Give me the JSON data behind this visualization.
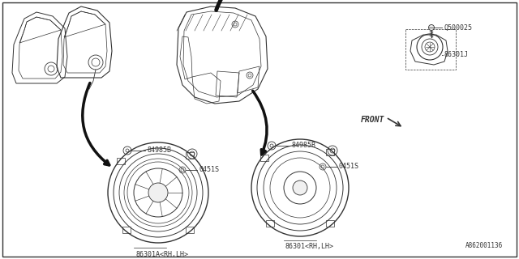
{
  "bg_color": "#ffffff",
  "line_color": "#333333",
  "text_color": "#333333",
  "label_fontsize": 6.0,
  "footer_text": "A862001136",
  "parts": {
    "screw_top": "Q500025",
    "tweeter_label": "86301J",
    "front_label": "FRONT",
    "bolt_label": "84985B",
    "screw_label": "0451S",
    "left_speaker_label": "86301A<RH,LH>",
    "right_speaker_label": "86301<RH,LH>"
  }
}
